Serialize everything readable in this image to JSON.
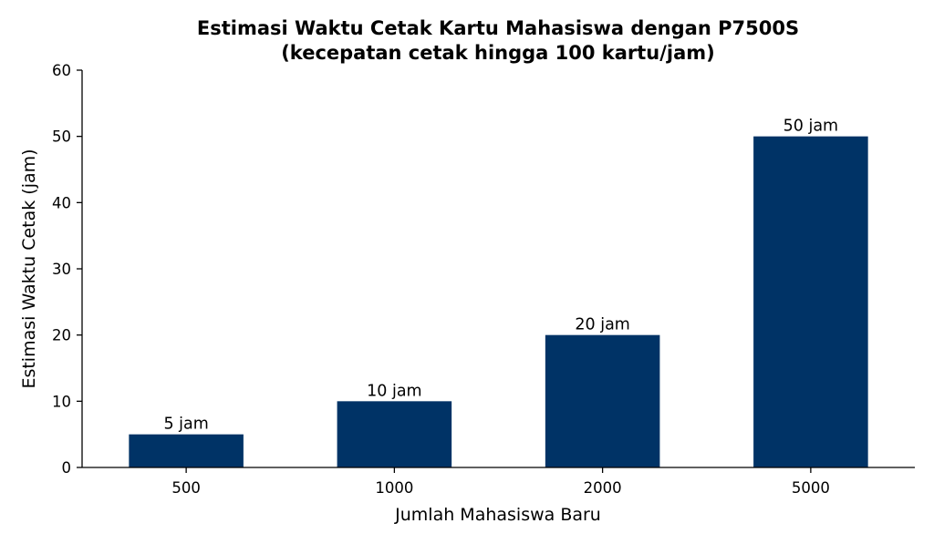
{
  "chart_data": {
    "type": "bar",
    "title_line1": "Estimasi Waktu Cetak Kartu Mahasiswa dengan P7500S",
    "title_line2": "(kecepatan cetak hingga 100 kartu/jam)",
    "xlabel": "Jumlah Mahasiswa Baru",
    "ylabel": "Estimasi Waktu Cetak (jam)",
    "categories": [
      "500",
      "1000",
      "2000",
      "5000"
    ],
    "values": [
      5,
      10,
      20,
      50
    ],
    "data_labels": [
      "5 jam",
      "10 jam",
      "20 jam",
      "50 jam"
    ],
    "ylim": [
      0,
      60
    ],
    "yticks": [
      0,
      10,
      20,
      30,
      40,
      50,
      60
    ],
    "bar_color": "#003366",
    "grid": false,
    "legend": "none"
  }
}
